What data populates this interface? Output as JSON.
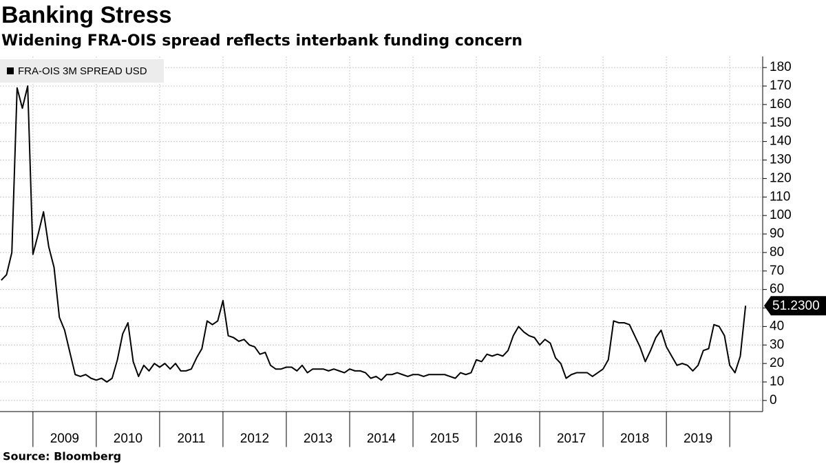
{
  "chart_data": {
    "type": "line",
    "title": "Banking Stress",
    "subtitle": "Widening FRA-OIS spread reflects interbank funding concern",
    "source": "Source: Bloomberg",
    "x": [
      2008.5,
      2008.583,
      2008.667,
      2008.75,
      2008.833,
      2008.917,
      2009,
      2009.083,
      2009.167,
      2009.25,
      2009.333,
      2009.417,
      2009.5,
      2009.583,
      2009.667,
      2009.75,
      2009.833,
      2009.917,
      2010,
      2010.083,
      2010.167,
      2010.25,
      2010.333,
      2010.417,
      2010.5,
      2010.583,
      2010.667,
      2010.75,
      2010.833,
      2010.917,
      2011,
      2011.083,
      2011.167,
      2011.25,
      2011.333,
      2011.417,
      2011.5,
      2011.583,
      2011.667,
      2011.75,
      2011.833,
      2011.917,
      2012,
      2012.083,
      2012.167,
      2012.25,
      2012.333,
      2012.417,
      2012.5,
      2012.583,
      2012.667,
      2012.75,
      2012.833,
      2012.917,
      2013,
      2013.083,
      2013.167,
      2013.25,
      2013.333,
      2013.417,
      2013.5,
      2013.583,
      2013.667,
      2013.75,
      2013.833,
      2013.917,
      2014,
      2014.083,
      2014.167,
      2014.25,
      2014.333,
      2014.417,
      2014.5,
      2014.583,
      2014.667,
      2014.75,
      2014.833,
      2014.917,
      2015,
      2015.083,
      2015.167,
      2015.25,
      2015.333,
      2015.417,
      2015.5,
      2015.583,
      2015.667,
      2015.75,
      2015.833,
      2015.917,
      2016,
      2016.083,
      2016.167,
      2016.25,
      2016.333,
      2016.417,
      2016.5,
      2016.583,
      2016.667,
      2016.75,
      2016.833,
      2016.917,
      2017,
      2017.083,
      2017.167,
      2017.25,
      2017.333,
      2017.417,
      2017.5,
      2017.583,
      2017.667,
      2017.75,
      2017.833,
      2017.917,
      2018,
      2018.083,
      2018.167,
      2018.25,
      2018.333,
      2018.417,
      2018.5,
      2018.583,
      2018.667,
      2018.75,
      2018.833,
      2018.917,
      2019,
      2019.083,
      2019.167,
      2019.25,
      2019.333,
      2019.417,
      2019.5,
      2019.583,
      2019.667,
      2019.75,
      2019.833,
      2019.917,
      2020,
      2020.083,
      2020.167,
      2020.25
    ],
    "series": [
      {
        "name": "FRA-OIS 3M SPREAD USD",
        "color": "#000000",
        "values": [
          65,
          68,
          80,
          169,
          158,
          170,
          79,
          90,
          102,
          83,
          72,
          45,
          38,
          26,
          14,
          13,
          14,
          12,
          11,
          12,
          10,
          12,
          22,
          36,
          42,
          21,
          13,
          19,
          16,
          20,
          18,
          20,
          17,
          20,
          16,
          16,
          17,
          23,
          28,
          43,
          41,
          43,
          54,
          35,
          34,
          32,
          33,
          30,
          29,
          25,
          26,
          19,
          17,
          17,
          18,
          18,
          16,
          19,
          15,
          17,
          17,
          17,
          16,
          17,
          16,
          15,
          17,
          16,
          16,
          15,
          12,
          13,
          11,
          14,
          14,
          15,
          14,
          13,
          14,
          14,
          13,
          14,
          14,
          14,
          14,
          13,
          12,
          15,
          14,
          15,
          22,
          21,
          25,
          24,
          25,
          24,
          27,
          35,
          40,
          37,
          35,
          34,
          30,
          33,
          31,
          23,
          20,
          12,
          14,
          15,
          15,
          15,
          13,
          15,
          17,
          22,
          43,
          42,
          42,
          41,
          35,
          29,
          21,
          27,
          34,
          38,
          29,
          24,
          19,
          20,
          19,
          16,
          19,
          27,
          28,
          41,
          40,
          35,
          19,
          15,
          24,
          51.23
        ],
        "value_labels": [
          null,
          null,
          null,
          null,
          null,
          null,
          null,
          null,
          null,
          null,
          null,
          null,
          null,
          null,
          null,
          null,
          null,
          null,
          null,
          null,
          null,
          null,
          null,
          null,
          null,
          null,
          null,
          null,
          null,
          null,
          null,
          null,
          null,
          null,
          null,
          null,
          null,
          null,
          null,
          null,
          null,
          null,
          null,
          null,
          null,
          null,
          null,
          null,
          null,
          null,
          null,
          null,
          null,
          null,
          null,
          null,
          null,
          null,
          null,
          null,
          null,
          null,
          null,
          null,
          null,
          null,
          null,
          null,
          null,
          null,
          null,
          null,
          null,
          null,
          null,
          null,
          null,
          null,
          null,
          null,
          null,
          null,
          null,
          null,
          null,
          null,
          null,
          null,
          null,
          null,
          null,
          null,
          null,
          null,
          null,
          null,
          null,
          null,
          null,
          null,
          null,
          null,
          null,
          null,
          null,
          null,
          null,
          null,
          null,
          null,
          null,
          null,
          null,
          null,
          null,
          null,
          null,
          null,
          null,
          null,
          null,
          null,
          null,
          null,
          null,
          null,
          null,
          null,
          null,
          null,
          null,
          null,
          null,
          null,
          null,
          null,
          null,
          null,
          null,
          null,
          null,
          "51.2300"
        ]
      }
    ],
    "xlim": [
      2008.48,
      2020.52
    ],
    "xticks": [
      2009,
      2010,
      2011,
      2012,
      2013,
      2014,
      2015,
      2016,
      2017,
      2018,
      2019,
      {
        "value": 2020,
        "label": null
      }
    ],
    "ylim": [
      -6,
      186
    ],
    "yticks": [
      0,
      10,
      20,
      30,
      40,
      50,
      60,
      70,
      80,
      90,
      100,
      110,
      120,
      130,
      140,
      150,
      160,
      170,
      180
    ],
    "grid": true
  }
}
